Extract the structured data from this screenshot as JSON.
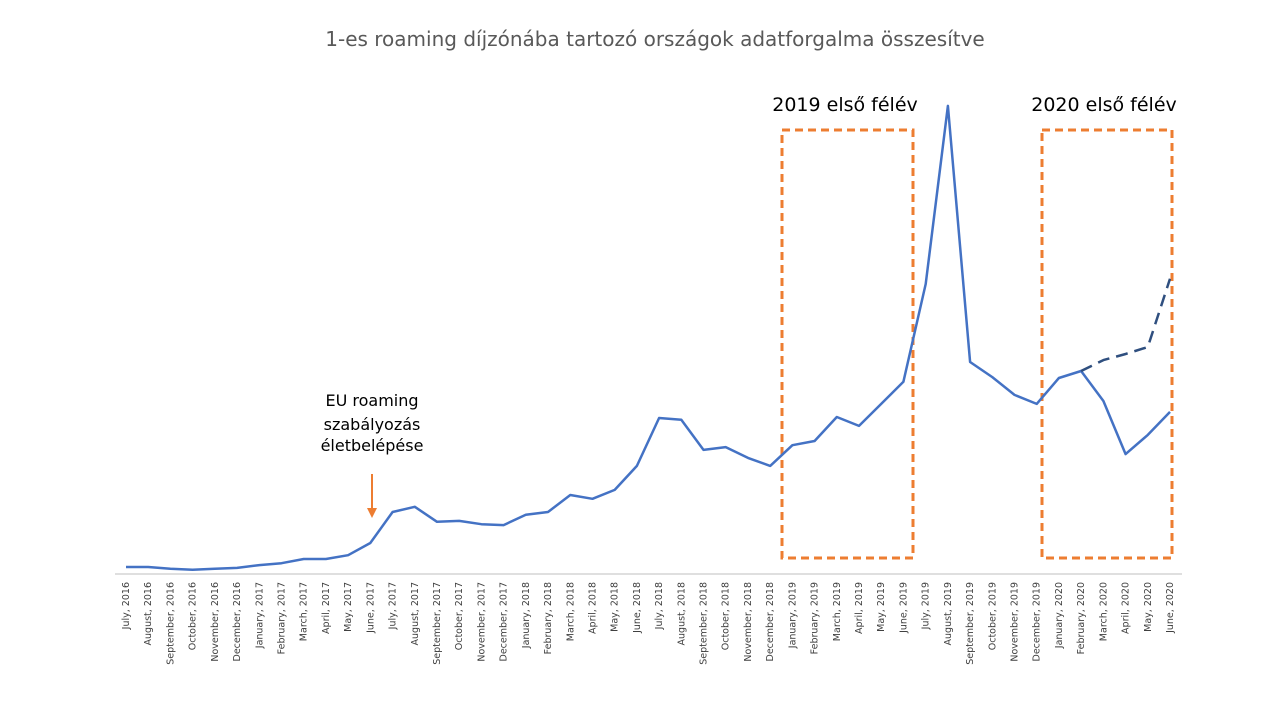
{
  "chart_data": {
    "type": "line",
    "title": "1-es roaming díjzónába tartozó országok adatforgalma összesítve",
    "categories": [
      "July, 2016",
      "August, 2016",
      "September, 2016",
      "October, 2016",
      "November, 2016",
      "December, 2016",
      "January, 2017",
      "February, 2017",
      "March, 2017",
      "April, 2017",
      "May, 2017",
      "June, 2017",
      "July, 2017",
      "August, 2017",
      "September, 2017",
      "October, 2017",
      "November, 2017",
      "December, 2017",
      "January, 2018",
      "February, 2018",
      "March, 2018",
      "April, 2018",
      "May, 2018",
      "June, 2018",
      "July, 2018",
      "August, 2018",
      "September, 2018",
      "October, 2018",
      "November, 2018",
      "December, 2018",
      "January, 2019",
      "February, 2019",
      "March, 2019",
      "April, 2019",
      "May, 2019",
      "June, 2019",
      "July, 2019",
      "August, 2019",
      "September, 2019",
      "October, 2019",
      "November, 2019",
      "December, 2019",
      "January, 2020",
      "February, 2020",
      "March, 2020",
      "April, 2020",
      "May, 2020",
      "June, 2020"
    ],
    "series": [
      {
        "color": "#4472c4",
        "dashed": false,
        "values": [
          1.5,
          1.5,
          1.1,
          0.9,
          1.1,
          1.3,
          1.9,
          2.3,
          3.2,
          3.2,
          4.0,
          6.6,
          13.2,
          14.3,
          11.1,
          11.3,
          10.6,
          10.4,
          12.6,
          13.2,
          16.8,
          16.0,
          17.9,
          23.0,
          33.2,
          32.8,
          26.4,
          27.0,
          24.7,
          23.0,
          27.4,
          28.3,
          33.4,
          31.5,
          36.2,
          40.9,
          61.7,
          99.6,
          45.1,
          41.9,
          38.1,
          36.2,
          41.7,
          43.2,
          36.8,
          25.5,
          29.6,
          34.5
        ]
      },
      {
        "color": "#2f4f7f",
        "dashed": true,
        "values": [
          null,
          null,
          null,
          null,
          null,
          null,
          null,
          null,
          null,
          null,
          null,
          null,
          null,
          null,
          null,
          null,
          null,
          null,
          null,
          null,
          null,
          null,
          null,
          null,
          null,
          null,
          null,
          null,
          null,
          null,
          null,
          null,
          null,
          null,
          null,
          null,
          null,
          null,
          null,
          null,
          null,
          null,
          null,
          43.2,
          45.5,
          46.8,
          48.3,
          62.8
        ]
      }
    ],
    "ylim": [
      0,
      100
    ],
    "annotation": [
      "EU roaming",
      "szabályozás",
      "életbelépése"
    ],
    "box_labels": [
      "2019 első félév",
      "2020 első félév"
    ]
  }
}
